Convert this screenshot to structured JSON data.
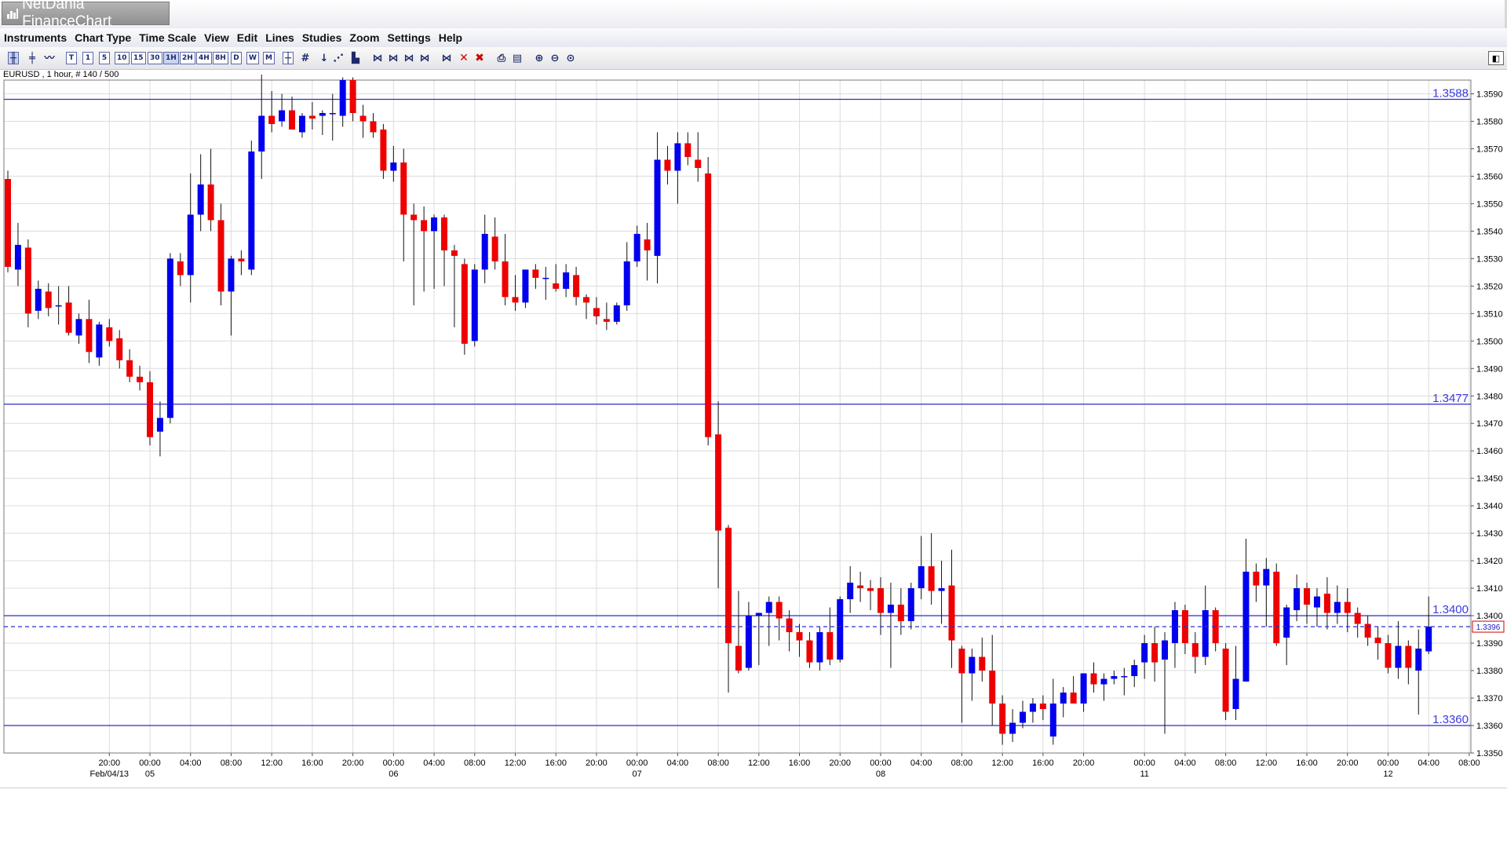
{
  "window": {
    "title": "NetDania FinanceChart"
  },
  "menu": [
    "Instruments",
    "Chart Type",
    "Time Scale",
    "View",
    "Edit",
    "Lines",
    "Studies",
    "Zoom",
    "Settings",
    "Help"
  ],
  "toolbar": {
    "timeframes": [
      "T",
      "1",
      "5",
      "10",
      "15",
      "30",
      "1H",
      "2H",
      "4H",
      "8H",
      "D",
      "W",
      "M"
    ],
    "selected_timeframe": "1H"
  },
  "symbol_info": "EURUSD , 1 hour, # 140 / 500",
  "colors": {
    "up": "#0000ee",
    "down": "#ee0000",
    "level_line": "#2c2ccc",
    "grid": "#dcdcdc"
  },
  "chart_data": {
    "type": "candlestick",
    "symbol": "EURUSD",
    "interval": "1 hour",
    "ylim": [
      1.335,
      1.3595
    ],
    "y_ticks": [
      "1.3350",
      "1.3360",
      "1.3370",
      "1.3380",
      "1.3390",
      "1.3400",
      "1.3410",
      "1.3420",
      "1.3430",
      "1.3440",
      "1.3450",
      "1.3460",
      "1.3470",
      "1.3480",
      "1.3490",
      "1.3500",
      "1.3510",
      "1.3520",
      "1.3530",
      "1.3540",
      "1.3550",
      "1.3560",
      "1.3570",
      "1.3580",
      "1.3590"
    ],
    "x_ticks": [
      {
        "index": 10,
        "time": "20:00",
        "date": "Feb/04/13"
      },
      {
        "index": 14,
        "time": "00:00",
        "date": "05"
      },
      {
        "index": 18,
        "time": "04:00",
        "date": ""
      },
      {
        "index": 22,
        "time": "08:00",
        "date": ""
      },
      {
        "index": 26,
        "time": "12:00",
        "date": ""
      },
      {
        "index": 30,
        "time": "16:00",
        "date": ""
      },
      {
        "index": 34,
        "time": "20:00",
        "date": ""
      },
      {
        "index": 38,
        "time": "00:00",
        "date": "06"
      },
      {
        "index": 42,
        "time": "04:00",
        "date": ""
      },
      {
        "index": 46,
        "time": "08:00",
        "date": ""
      },
      {
        "index": 50,
        "time": "12:00",
        "date": ""
      },
      {
        "index": 54,
        "time": "16:00",
        "date": ""
      },
      {
        "index": 58,
        "time": "20:00",
        "date": ""
      },
      {
        "index": 62,
        "time": "00:00",
        "date": "07"
      },
      {
        "index": 66,
        "time": "04:00",
        "date": ""
      },
      {
        "index": 70,
        "time": "08:00",
        "date": ""
      },
      {
        "index": 74,
        "time": "12:00",
        "date": ""
      },
      {
        "index": 78,
        "time": "16:00",
        "date": ""
      },
      {
        "index": 82,
        "time": "20:00",
        "date": ""
      },
      {
        "index": 86,
        "time": "00:00",
        "date": "08"
      },
      {
        "index": 90,
        "time": "04:00",
        "date": ""
      },
      {
        "index": 94,
        "time": "08:00",
        "date": ""
      },
      {
        "index": 98,
        "time": "12:00",
        "date": ""
      },
      {
        "index": 102,
        "time": "16:00",
        "date": ""
      },
      {
        "index": 106,
        "time": "20:00",
        "date": ""
      },
      {
        "index": 112,
        "time": "00:00",
        "date": "11"
      },
      {
        "index": 116,
        "time": "04:00",
        "date": ""
      },
      {
        "index": 120,
        "time": "08:00",
        "date": ""
      },
      {
        "index": 124,
        "time": "12:00",
        "date": ""
      },
      {
        "index": 128,
        "time": "16:00",
        "date": ""
      },
      {
        "index": 132,
        "time": "20:00",
        "date": ""
      },
      {
        "index": 136,
        "time": "00:00",
        "date": "12"
      },
      {
        "index": 140,
        "time": "04:00",
        "date": ""
      },
      {
        "index": 144,
        "time": "08:00",
        "date": ""
      }
    ],
    "horizontal_lines": [
      {
        "value": 1.3588,
        "label": "1.3588"
      },
      {
        "value": 1.3477,
        "label": "1.3477"
      },
      {
        "value": 1.34,
        "label": "1.3400"
      },
      {
        "value": 1.336,
        "label": "1.3360"
      }
    ],
    "last_price": {
      "value": 1.3396,
      "label": "1.3396"
    },
    "candles": [
      [
        1.3559,
        1.3562,
        1.3525,
        1.3527
      ],
      [
        1.3526,
        1.3543,
        1.352,
        1.3535
      ],
      [
        1.3534,
        1.3537,
        1.3505,
        1.351
      ],
      [
        1.3511,
        1.3522,
        1.3508,
        1.3519
      ],
      [
        1.3518,
        1.3521,
        1.3509,
        1.3512
      ],
      [
        1.3513,
        1.352,
        1.3506,
        1.3513
      ],
      [
        1.3514,
        1.352,
        1.3502,
        1.3503
      ],
      [
        1.3502,
        1.351,
        1.3499,
        1.3508
      ],
      [
        1.3508,
        1.3515,
        1.3492,
        1.3496
      ],
      [
        1.3494,
        1.3507,
        1.3491,
        1.3506
      ],
      [
        1.3505,
        1.3508,
        1.3498,
        1.35
      ],
      [
        1.3501,
        1.3504,
        1.349,
        1.3493
      ],
      [
        1.3493,
        1.3497,
        1.3485,
        1.3487
      ],
      [
        1.3487,
        1.3491,
        1.3482,
        1.3485
      ],
      [
        1.3485,
        1.3489,
        1.3462,
        1.3465
      ],
      [
        1.3467,
        1.3478,
        1.3458,
        1.3472
      ],
      [
        1.3472,
        1.3532,
        1.347,
        1.353
      ],
      [
        1.3529,
        1.3532,
        1.352,
        1.3524
      ],
      [
        1.3524,
        1.3561,
        1.3514,
        1.3546
      ],
      [
        1.3546,
        1.3568,
        1.354,
        1.3557
      ],
      [
        1.3557,
        1.357,
        1.354,
        1.3544
      ],
      [
        1.3544,
        1.355,
        1.3513,
        1.3518
      ],
      [
        1.3518,
        1.3531,
        1.3502,
        1.353
      ],
      [
        1.353,
        1.3533,
        1.3524,
        1.3529
      ],
      [
        1.3526,
        1.3573,
        1.3524,
        1.3569
      ],
      [
        1.3569,
        1.3597,
        1.3559,
        1.3582
      ],
      [
        1.3582,
        1.3591,
        1.3576,
        1.3579
      ],
      [
        1.358,
        1.359,
        1.3578,
        1.3584
      ],
      [
        1.3584,
        1.3589,
        1.3578,
        1.3577
      ],
      [
        1.3576,
        1.3583,
        1.3574,
        1.3582
      ],
      [
        1.3582,
        1.3587,
        1.3577,
        1.3581
      ],
      [
        1.3582,
        1.3584,
        1.3575,
        1.3583
      ],
      [
        1.3583,
        1.359,
        1.3573,
        1.3583
      ],
      [
        1.3582,
        1.3596,
        1.3578,
        1.3595
      ],
      [
        1.3595,
        1.3596,
        1.358,
        1.3583
      ],
      [
        1.3582,
        1.3586,
        1.3574,
        1.358
      ],
      [
        1.358,
        1.3583,
        1.3574,
        1.3576
      ],
      [
        1.3577,
        1.3579,
        1.3559,
        1.3562
      ],
      [
        1.3562,
        1.3571,
        1.3558,
        1.3565
      ],
      [
        1.3565,
        1.357,
        1.3529,
        1.3546
      ],
      [
        1.3546,
        1.355,
        1.3513,
        1.3544
      ],
      [
        1.3544,
        1.3549,
        1.3518,
        1.354
      ],
      [
        1.354,
        1.3546,
        1.3519,
        1.3545
      ],
      [
        1.3545,
        1.3546,
        1.352,
        1.3533
      ],
      [
        1.3533,
        1.3535,
        1.3505,
        1.3531
      ],
      [
        1.3528,
        1.353,
        1.3495,
        1.3499
      ],
      [
        1.35,
        1.3528,
        1.3498,
        1.3526
      ],
      [
        1.3526,
        1.3546,
        1.3521,
        1.3539
      ],
      [
        1.3538,
        1.3545,
        1.3526,
        1.3529
      ],
      [
        1.3529,
        1.3539,
        1.3513,
        1.3516
      ],
      [
        1.3516,
        1.3524,
        1.3511,
        1.3514
      ],
      [
        1.3514,
        1.3526,
        1.3512,
        1.3526
      ],
      [
        1.3526,
        1.3528,
        1.3519,
        1.3523
      ],
      [
        1.3523,
        1.3527,
        1.3515,
        1.3523
      ],
      [
        1.3521,
        1.3528,
        1.3518,
        1.3519
      ],
      [
        1.3519,
        1.3528,
        1.3516,
        1.3525
      ],
      [
        1.3524,
        1.3527,
        1.3513,
        1.3516
      ],
      [
        1.3516,
        1.3517,
        1.3508,
        1.3514
      ],
      [
        1.3512,
        1.3516,
        1.3506,
        1.3509
      ],
      [
        1.3508,
        1.3514,
        1.3504,
        1.3507
      ],
      [
        1.3507,
        1.3514,
        1.3506,
        1.3513
      ],
      [
        1.3513,
        1.3536,
        1.3511,
        1.3529
      ],
      [
        1.3529,
        1.3542,
        1.3527,
        1.3539
      ],
      [
        1.3537,
        1.3543,
        1.3522,
        1.3533
      ],
      [
        1.3531,
        1.3576,
        1.3521,
        1.3566
      ],
      [
        1.3566,
        1.3571,
        1.3557,
        1.3562
      ],
      [
        1.3562,
        1.3576,
        1.355,
        1.3572
      ],
      [
        1.3572,
        1.3576,
        1.3564,
        1.3567
      ],
      [
        1.3566,
        1.3576,
        1.3558,
        1.3563
      ],
      [
        1.3561,
        1.3567,
        1.3462,
        1.3465
      ],
      [
        1.3466,
        1.3478,
        1.341,
        1.3431
      ],
      [
        1.3432,
        1.3433,
        1.3372,
        1.339
      ],
      [
        1.3389,
        1.3409,
        1.3379,
        1.338
      ],
      [
        1.3381,
        1.3405,
        1.338,
        1.34
      ],
      [
        1.34,
        1.3401,
        1.3382,
        1.3401
      ],
      [
        1.3401,
        1.3407,
        1.3389,
        1.3405
      ],
      [
        1.3405,
        1.3407,
        1.3391,
        1.3399
      ],
      [
        1.3399,
        1.3402,
        1.3387,
        1.3394
      ],
      [
        1.3394,
        1.3397,
        1.3385,
        1.3391
      ],
      [
        1.3391,
        1.3394,
        1.3381,
        1.3383
      ],
      [
        1.3383,
        1.3396,
        1.338,
        1.3394
      ],
      [
        1.3394,
        1.3403,
        1.3382,
        1.3384
      ],
      [
        1.3384,
        1.3407,
        1.3383,
        1.3406
      ],
      [
        1.3406,
        1.3418,
        1.3401,
        1.3412
      ],
      [
        1.3411,
        1.3416,
        1.3405,
        1.341
      ],
      [
        1.341,
        1.3413,
        1.3402,
        1.3409
      ],
      [
        1.341,
        1.3414,
        1.3393,
        1.3401
      ],
      [
        1.3401,
        1.3412,
        1.3381,
        1.3404
      ],
      [
        1.3404,
        1.341,
        1.3393,
        1.3398
      ],
      [
        1.3398,
        1.3412,
        1.3395,
        1.341
      ],
      [
        1.341,
        1.3429,
        1.3406,
        1.3418
      ],
      [
        1.3418,
        1.343,
        1.3404,
        1.3409
      ],
      [
        1.3409,
        1.342,
        1.3397,
        1.341
      ],
      [
        1.3411,
        1.3424,
        1.3381,
        1.3391
      ],
      [
        1.3388,
        1.3389,
        1.3361,
        1.3379
      ],
      [
        1.3379,
        1.3388,
        1.3369,
        1.3385
      ],
      [
        1.3385,
        1.3392,
        1.3376,
        1.338
      ],
      [
        1.338,
        1.3393,
        1.336,
        1.3368
      ],
      [
        1.3368,
        1.3371,
        1.3353,
        1.3357
      ],
      [
        1.3357,
        1.3366,
        1.3354,
        1.3361
      ],
      [
        1.3361,
        1.3369,
        1.3359,
        1.3365
      ],
      [
        1.3365,
        1.337,
        1.3361,
        1.3368
      ],
      [
        1.3368,
        1.3371,
        1.3362,
        1.3366
      ],
      [
        1.3356,
        1.3377,
        1.3353,
        1.3368
      ],
      [
        1.3368,
        1.3374,
        1.3363,
        1.3372
      ],
      [
        1.3372,
        1.3378,
        1.3368,
        1.3368
      ],
      [
        1.3368,
        1.3379,
        1.3365,
        1.3379
      ],
      [
        1.3379,
        1.3383,
        1.3372,
        1.3375
      ],
      [
        1.3375,
        1.3379,
        1.3369,
        1.3377
      ],
      [
        1.3377,
        1.338,
        1.3375,
        1.3378
      ],
      [
        1.3378,
        1.3381,
        1.3371,
        1.3378
      ],
      [
        1.3378,
        1.3384,
        1.3374,
        1.3382
      ],
      [
        1.3383,
        1.3393,
        1.3377,
        1.339
      ],
      [
        1.339,
        1.3396,
        1.3376,
        1.3383
      ],
      [
        1.3384,
        1.3394,
        1.3357,
        1.3391
      ],
      [
        1.339,
        1.3405,
        1.3381,
        1.3402
      ],
      [
        1.3402,
        1.3404,
        1.3386,
        1.339
      ],
      [
        1.339,
        1.3394,
        1.3379,
        1.3385
      ],
      [
        1.3385,
        1.3411,
        1.3382,
        1.3402
      ],
      [
        1.3402,
        1.3403,
        1.3387,
        1.339
      ],
      [
        1.3388,
        1.339,
        1.3362,
        1.3365
      ],
      [
        1.3366,
        1.3389,
        1.3362,
        1.3377
      ],
      [
        1.3376,
        1.3428,
        1.3376,
        1.3416
      ],
      [
        1.3416,
        1.3419,
        1.3405,
        1.3411
      ],
      [
        1.3411,
        1.3421,
        1.3396,
        1.3417
      ],
      [
        1.3416,
        1.3419,
        1.3389,
        1.339
      ],
      [
        1.3392,
        1.3404,
        1.3382,
        1.3403
      ],
      [
        1.3402,
        1.3415,
        1.3398,
        1.341
      ],
      [
        1.341,
        1.3412,
        1.3397,
        1.3404
      ],
      [
        1.3403,
        1.341,
        1.3396,
        1.3407
      ],
      [
        1.3408,
        1.3414,
        1.3395,
        1.3401
      ],
      [
        1.3401,
        1.3411,
        1.3397,
        1.3405
      ],
      [
        1.3405,
        1.341,
        1.3394,
        1.3401
      ],
      [
        1.3401,
        1.3403,
        1.3392,
        1.3397
      ],
      [
        1.3397,
        1.34,
        1.3389,
        1.3392
      ],
      [
        1.3392,
        1.3396,
        1.3384,
        1.339
      ],
      [
        1.339,
        1.3393,
        1.3379,
        1.3381
      ],
      [
        1.3381,
        1.3398,
        1.3377,
        1.3389
      ],
      [
        1.3389,
        1.3391,
        1.3375,
        1.3381
      ],
      [
        1.338,
        1.3395,
        1.3364,
        1.3388
      ],
      [
        1.3387,
        1.3407,
        1.3386,
        1.3396
      ]
    ]
  }
}
